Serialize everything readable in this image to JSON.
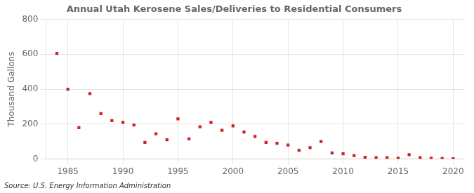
{
  "chart_data": {
    "type": "scatter",
    "title": "Annual Utah Kerosene Sales/Deliveries to Residential Consumers",
    "ylabel": "Thousand Gallons",
    "source": "Source: U.S. Energy Information Administration",
    "x": [
      1984,
      1985,
      1986,
      1987,
      1988,
      1989,
      1990,
      1991,
      1992,
      1993,
      1994,
      1995,
      1996,
      1997,
      1998,
      1999,
      2000,
      2001,
      2002,
      2003,
      2004,
      2005,
      2006,
      2007,
      2008,
      2009,
      2010,
      2011,
      2012,
      2013,
      2014,
      2015,
      2016,
      2017,
      2018,
      2019,
      2020
    ],
    "values": [
      605,
      400,
      180,
      375,
      260,
      220,
      210,
      195,
      95,
      145,
      110,
      230,
      115,
      185,
      210,
      165,
      190,
      155,
      130,
      95,
      90,
      80,
      50,
      65,
      100,
      35,
      30,
      20,
      10,
      8,
      8,
      5,
      25,
      8,
      5,
      3,
      2
    ],
    "color": "#cc2222",
    "marker": "square",
    "xlim": [
      1983,
      2021
    ],
    "xticks": [
      1985,
      1990,
      1995,
      2000,
      2005,
      2010,
      2015,
      2020
    ],
    "ylim": [
      0,
      800
    ],
    "yticks": [
      0,
      200,
      400,
      600,
      800
    ],
    "grid": true
  }
}
